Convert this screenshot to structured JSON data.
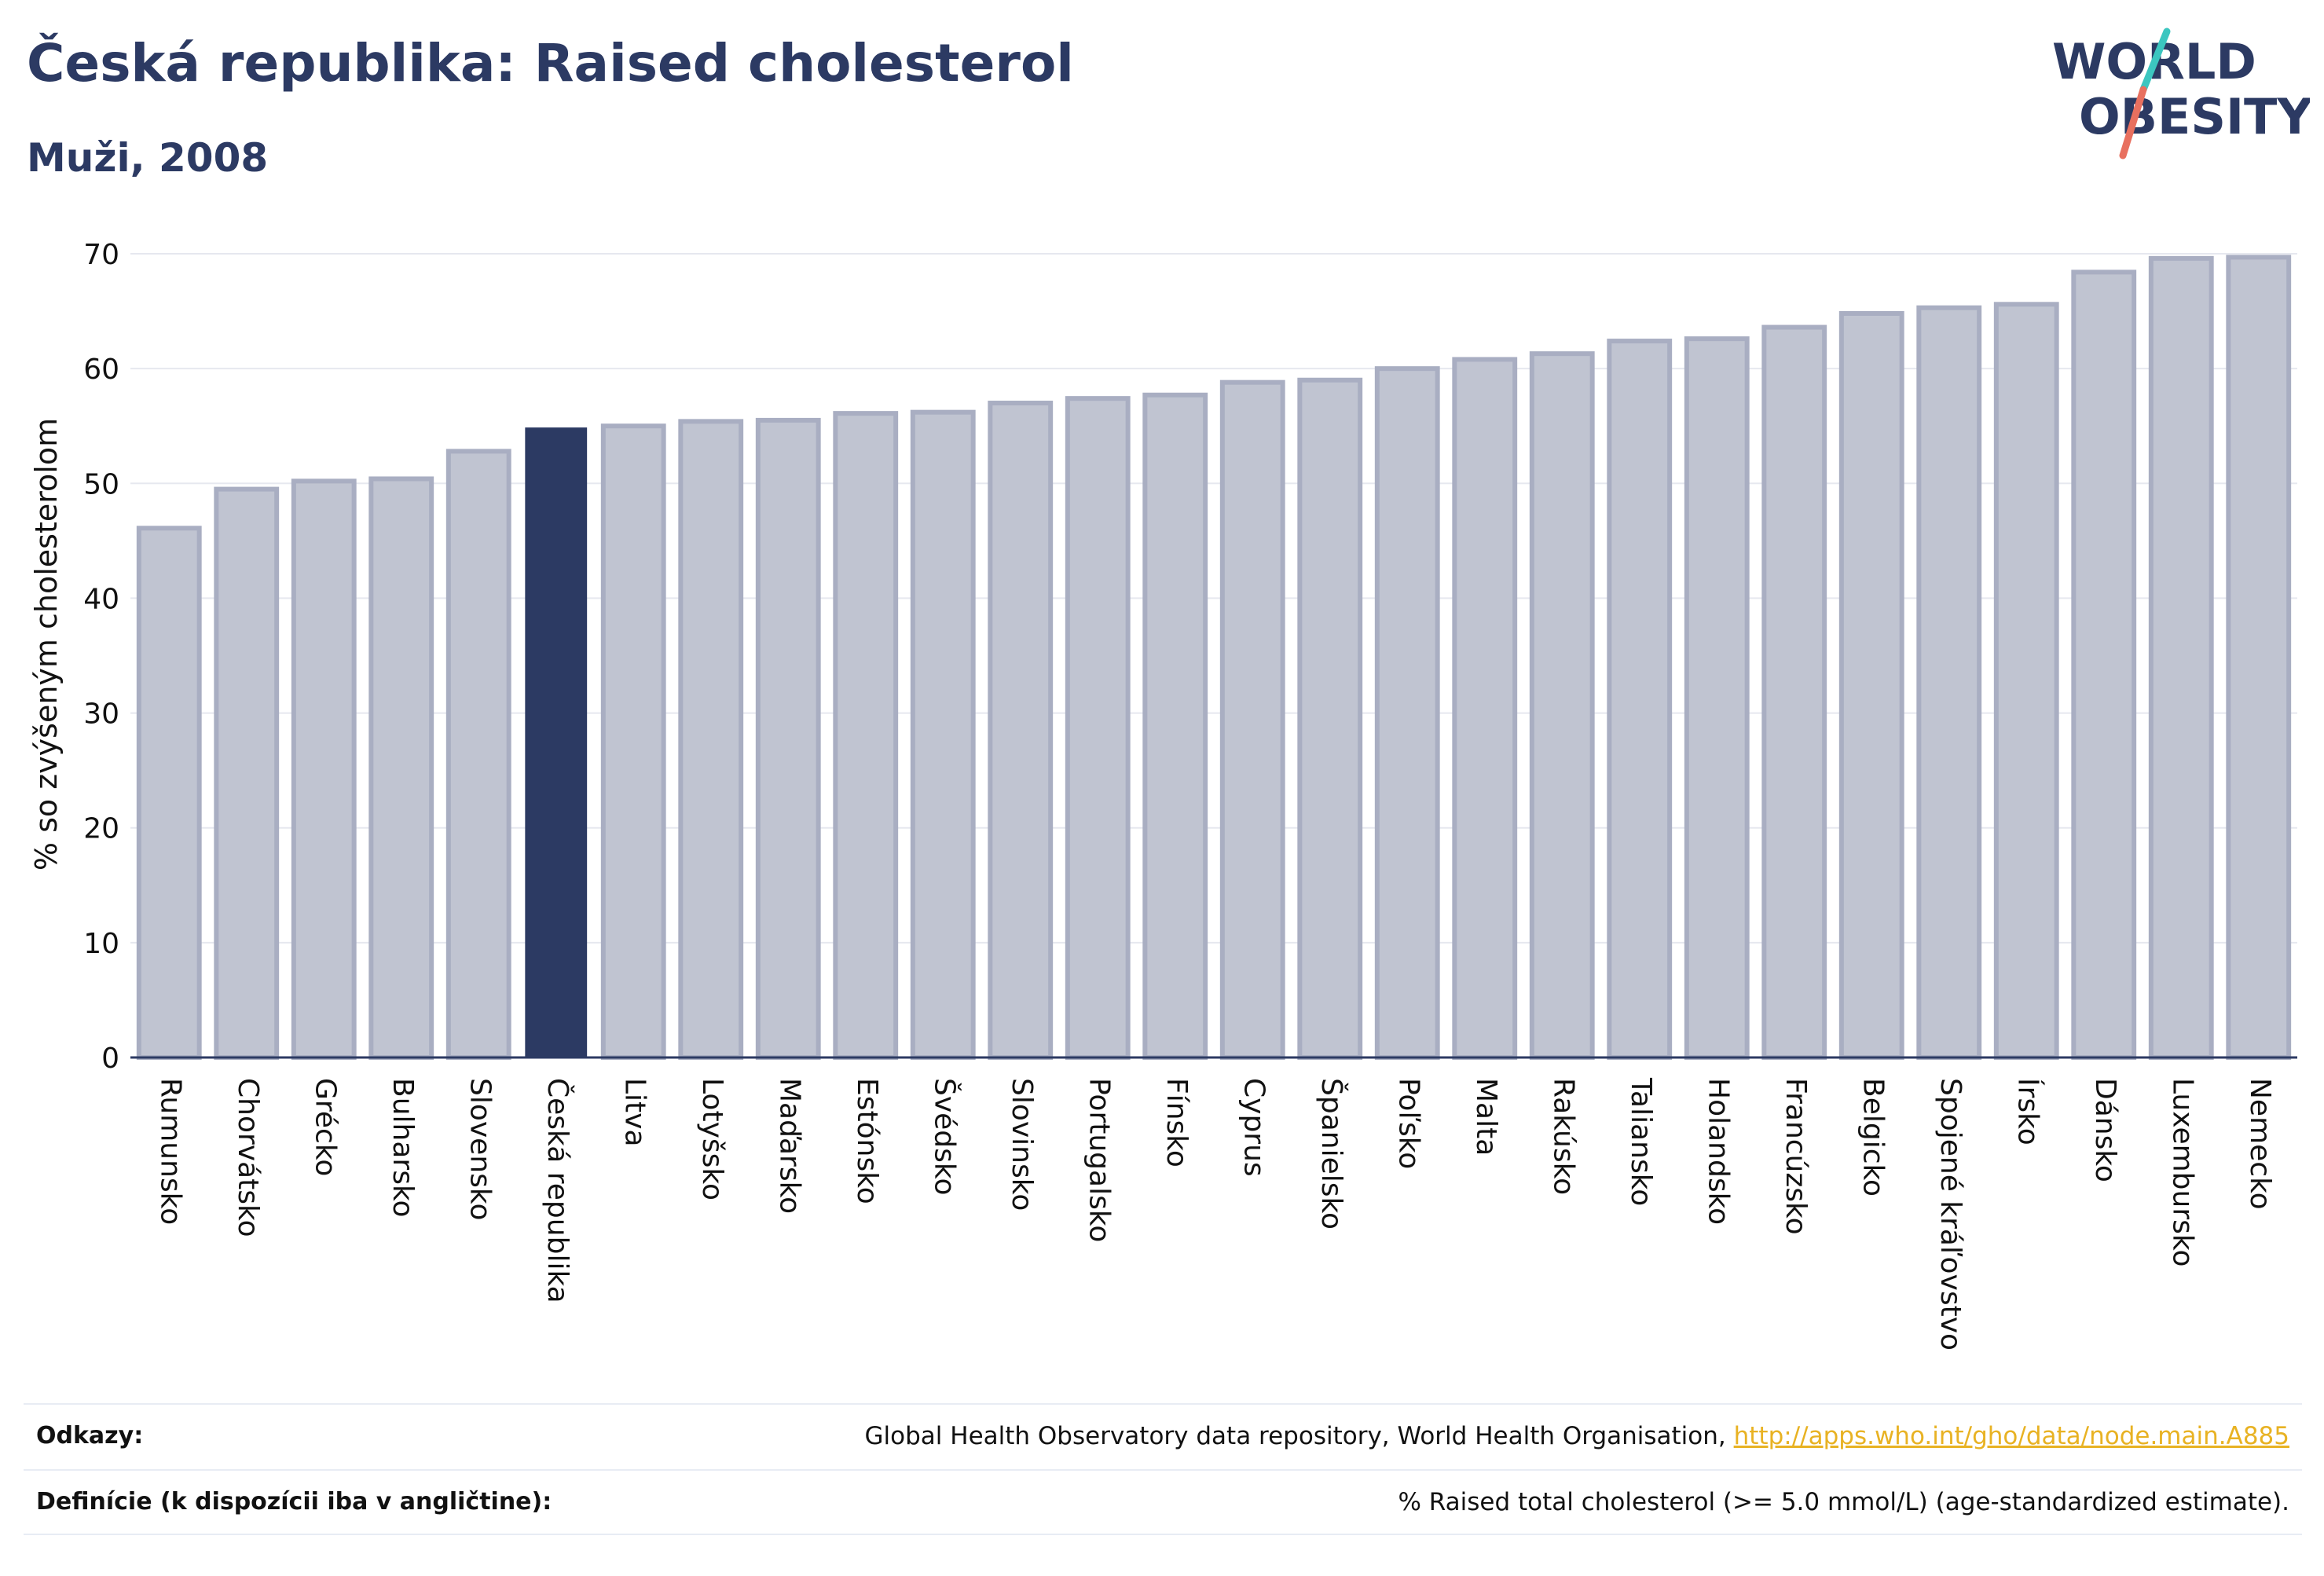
{
  "header": {
    "title": "Česká republika: Raised cholesterol",
    "subtitle": "Muži, 2008"
  },
  "logo": {
    "line1": "WORLD",
    "line2": "OBESITY"
  },
  "colors": {
    "highlight": "#2c3a63",
    "bar": "#c0c4d1",
    "bar_stroke": "#a9aec2",
    "title": "#2c3a63",
    "link": "#e8b223",
    "logo_slash_teal": "#3cc6c0",
    "logo_slash_coral": "#e8705f"
  },
  "chart_data": {
    "type": "bar",
    "ylabel": "% so zvýšeným cholesterolom",
    "ylim": [
      0,
      70
    ],
    "yticks": [
      0,
      10,
      20,
      30,
      40,
      50,
      60,
      70
    ],
    "grid": true,
    "highlight": "Česká republika",
    "categories": [
      "Rumunsko",
      "Chorvátsko",
      "Grécko",
      "Bulharsko",
      "Slovensko",
      "Česká republika",
      "Litva",
      "Lotyšsko",
      "Maďarsko",
      "Estónsko",
      "Švédsko",
      "Slovinsko",
      "Portugalsko",
      "Fínsko",
      "Cyprus",
      "Španielsko",
      "Poľsko",
      "Malta",
      "Rakúsko",
      "Taliansko",
      "Holandsko",
      "Francúzsko",
      "Belgicko",
      "Spojené kráľovstvo",
      "Írsko",
      "Dánsko",
      "Luxembursko",
      "Nemecko"
    ],
    "values": [
      46.1,
      49.5,
      50.2,
      50.4,
      52.8,
      54.8,
      55.0,
      55.4,
      55.5,
      56.1,
      56.2,
      57.0,
      57.4,
      57.7,
      58.8,
      59.0,
      60.0,
      60.8,
      61.3,
      62.4,
      62.6,
      63.6,
      64.8,
      65.3,
      65.6,
      68.4,
      69.6,
      69.7
    ]
  },
  "footer": {
    "references_label": "Odkazy:",
    "references_text": "Global Health Observatory data repository, World Health Organisation, ",
    "references_link": "http://apps.who.int/gho/data/node.main.A885",
    "definitions_label": "Definície (k dispozícii iba v angličtine):",
    "definitions_text": "% Raised total cholesterol (>= 5.0 mmol/L) (age-standardized estimate)."
  }
}
